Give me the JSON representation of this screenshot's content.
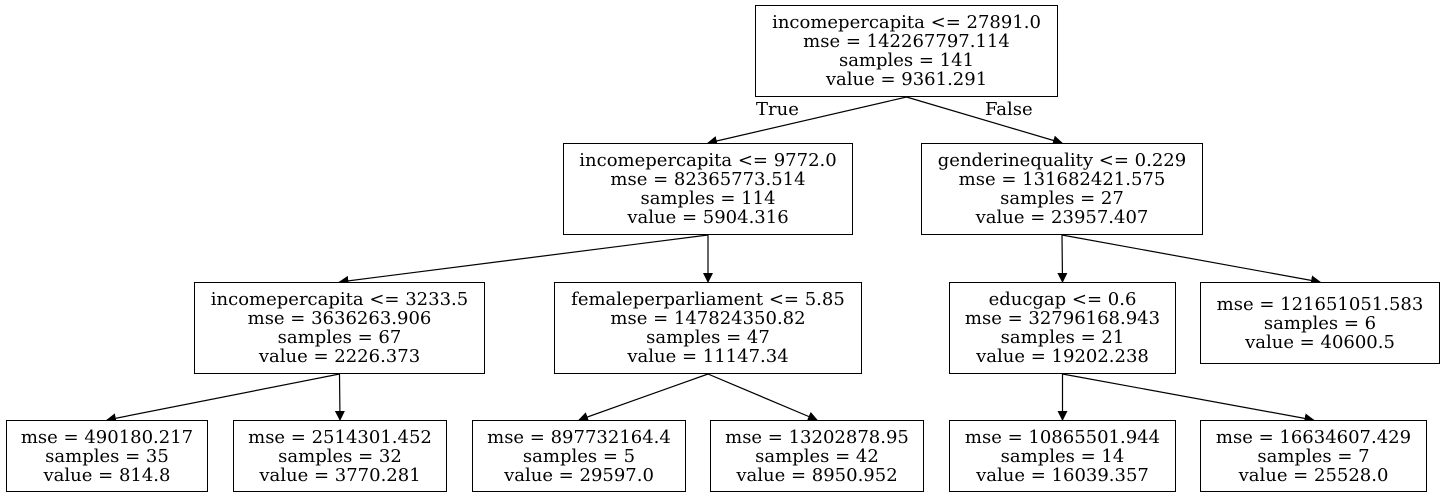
{
  "tree": {
    "nodes": [
      {
        "id": "n0",
        "lines": [
          "incomepercapita <= 27891.0",
          "mse = 142267797.114",
          "samples = 141",
          "value = 9361.291"
        ]
      },
      {
        "id": "n1",
        "lines": [
          "incomepercapita <= 9772.0",
          "mse = 82365773.514",
          "samples = 114",
          "value = 5904.316"
        ]
      },
      {
        "id": "n2",
        "lines": [
          "genderinequality <= 0.229",
          "mse = 131682421.575",
          "samples = 27",
          "value = 23957.407"
        ]
      },
      {
        "id": "n3",
        "lines": [
          "incomepercapita <= 3233.5",
          "mse = 3636263.906",
          "samples = 67",
          "value = 2226.373"
        ]
      },
      {
        "id": "n4",
        "lines": [
          "femaleperparliament <= 5.85",
          "mse = 147824350.82",
          "samples = 47",
          "value = 11147.34"
        ]
      },
      {
        "id": "n5",
        "lines": [
          "educgap <= 0.6",
          "mse = 32796168.943",
          "samples = 21",
          "value = 19202.238"
        ]
      },
      {
        "id": "n6",
        "lines": [
          "mse = 121651051.583",
          "samples = 6",
          "value = 40600.5"
        ]
      },
      {
        "id": "n7",
        "lines": [
          "mse = 490180.217",
          "samples = 35",
          "value = 814.8"
        ]
      },
      {
        "id": "n8",
        "lines": [
          "mse = 2514301.452",
          "samples = 32",
          "value = 3770.281"
        ]
      },
      {
        "id": "n9",
        "lines": [
          "mse = 897732164.4",
          "samples = 5",
          "value = 29597.0"
        ]
      },
      {
        "id": "n10",
        "lines": [
          "mse = 13202878.95",
          "samples = 42",
          "value = 8950.952"
        ]
      },
      {
        "id": "n11",
        "lines": [
          "mse = 10865501.944",
          "samples = 14",
          "value = 16039.357"
        ]
      },
      {
        "id": "n12",
        "lines": [
          "mse = 16634607.429",
          "samples = 7",
          "value = 25528.0"
        ]
      }
    ],
    "edges": [
      {
        "from": "n0",
        "to": "n1",
        "label": "True"
      },
      {
        "from": "n0",
        "to": "n2",
        "label": "False"
      },
      {
        "from": "n1",
        "to": "n3",
        "label": ""
      },
      {
        "from": "n1",
        "to": "n4",
        "label": ""
      },
      {
        "from": "n2",
        "to": "n5",
        "label": ""
      },
      {
        "from": "n2",
        "to": "n6",
        "label": ""
      },
      {
        "from": "n3",
        "to": "n7",
        "label": ""
      },
      {
        "from": "n3",
        "to": "n8",
        "label": ""
      },
      {
        "from": "n4",
        "to": "n9",
        "label": ""
      },
      {
        "from": "n4",
        "to": "n10",
        "label": ""
      },
      {
        "from": "n5",
        "to": "n11",
        "label": ""
      },
      {
        "from": "n5",
        "to": "n12",
        "label": ""
      }
    ]
  }
}
